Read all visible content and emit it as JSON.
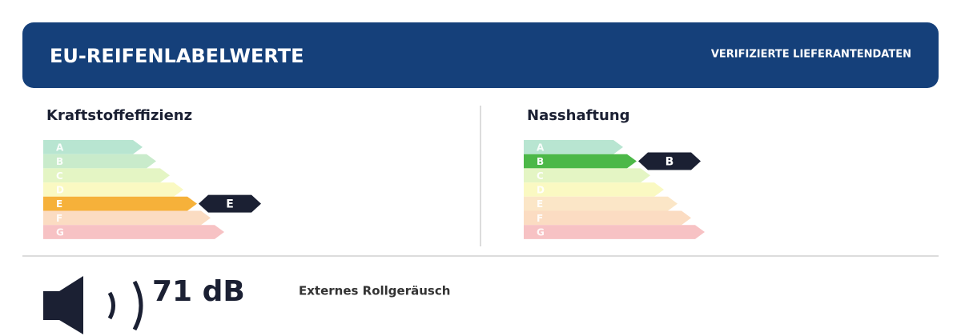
{
  "header": {
    "title": "EU-REIFENLABELWERTE",
    "badge": "VERIFIZIERTE LIEFERANTENDATEN"
  },
  "panels": [
    {
      "label": "Kraftstoffeffizienz",
      "scale": [
        "A",
        "B",
        "C",
        "D",
        "E",
        "F",
        "G"
      ],
      "rating": "E"
    },
    {
      "label": "Nasshaftung",
      "scale": [
        "A",
        "B",
        "C",
        "D",
        "E",
        "F",
        "G"
      ],
      "rating": "B"
    }
  ],
  "noise": {
    "value": "71 dB",
    "label": "Externes Rollgeräusch"
  }
}
